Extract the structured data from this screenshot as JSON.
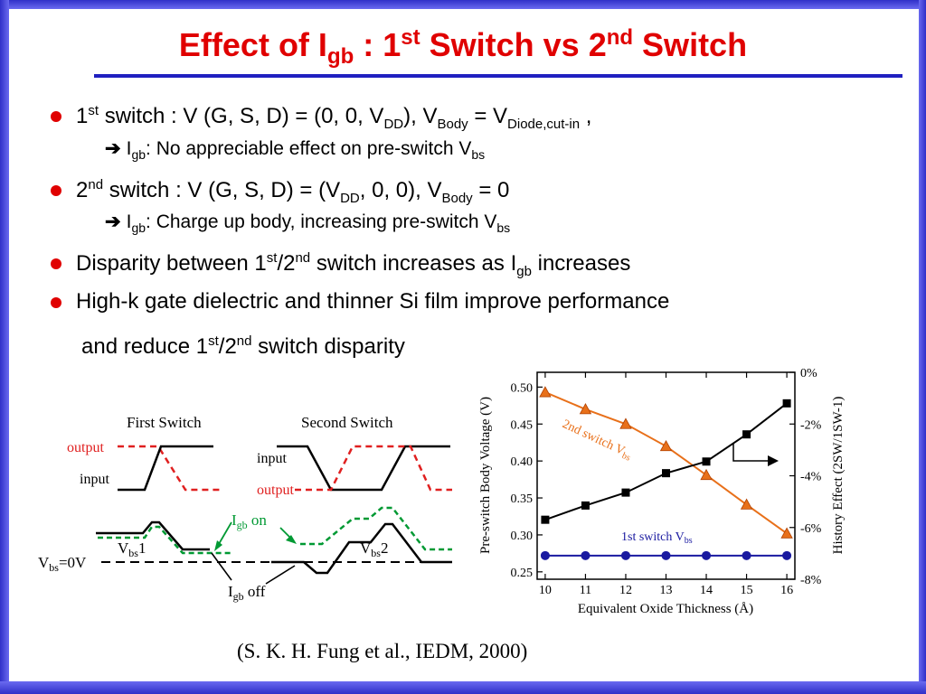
{
  "title": {
    "pre": "Effect  of  I",
    "sub": "gb",
    "mid1": " : 1",
    "sup1": "st",
    "mid2": "  Switch vs  2",
    "sup2": "nd",
    "post": " Switch"
  },
  "bullets": [
    {
      "line": {
        "a": "1",
        "a_sup": "st",
        "b": " switch : V (G, S, D) = (0, 0, V",
        "b_sub": "DD",
        "c": "),  V",
        "c_sub": "Body",
        "d": " = V",
        "d_sub": "Diode,cut-in",
        "e": " ,"
      },
      "sub": {
        "a": "I",
        "a_sub": "gb",
        "b": ": No appreciable effect on pre-switch V",
        "b_sub": "bs"
      }
    },
    {
      "line": {
        "a": "2",
        "a_sup": "nd",
        "b": " switch : V (G, S, D) = (V",
        "b_sub": "DD",
        "c": ", 0, 0),  V",
        "c_sub": "Body",
        "d": " = 0"
      },
      "sub": {
        "a": "I",
        "a_sub": "gb",
        "b": ": Charge up body,  increasing pre-switch V",
        "b_sub": "bs"
      }
    },
    {
      "line": {
        "a": "Disparity between 1",
        "a_sup": "st",
        "b": "/2",
        "b_sup": "nd",
        "c": " switch increases as I",
        "c_sub": "gb",
        "d": " increases"
      }
    },
    {
      "line": {
        "a": "High-k gate dielectric and thinner Si film improve performance"
      },
      "cont": {
        "a": "and reduce 1",
        "a_sup": "st",
        "b": "/2",
        "b_sup": "nd",
        "c": " switch disparity"
      }
    }
  ],
  "diagram": {
    "first_switch": "First Switch",
    "second_switch": "Second Switch",
    "output": "output",
    "input": "input",
    "output2": "output",
    "input2": "input",
    "igb_on": {
      "I": "I",
      "sub": "gb",
      "post": " on"
    },
    "igb_off": {
      "I": "I",
      "sub": "gb",
      "post": " off"
    },
    "vbs1": {
      "V": "V",
      "sub": "bs",
      "post": "1"
    },
    "vbs2": {
      "V": "V",
      "sub": "bs",
      "post": "2"
    },
    "vbs0": {
      "V": "V",
      "sub": "bs",
      "post": "=0V"
    },
    "colors": {
      "output": "#e02020",
      "input": "#000000",
      "igb_on": "#009933"
    }
  },
  "chart_data": {
    "type": "line",
    "x": [
      10,
      11,
      12,
      13,
      14,
      15,
      16
    ],
    "xlabel": "Equivalent Oxide Thickness (Å)",
    "xticks": [
      "10",
      "11",
      "12",
      "13",
      "14",
      "15",
      "16"
    ],
    "xlim": [
      9.8,
      16.2
    ],
    "ylabel": "Pre-switch Body Voltage (V)",
    "ylim": [
      0.24,
      0.52
    ],
    "yticks": [
      "0.25",
      "0.30",
      "0.35",
      "0.40",
      "0.45",
      "0.50"
    ],
    "y2label": "History Effect (2SW/1SW-1)",
    "y2lim": [
      -8,
      0
    ],
    "y2ticks": [
      "0%",
      "-2%",
      "-4%",
      "-6%",
      "-8%"
    ],
    "series": [
      {
        "name": "2nd switch Vbs",
        "label_main": "2nd switch V",
        "label_sub": "bs",
        "axis": "left",
        "marker": "triangle",
        "color": "#e8701a",
        "values": [
          0.493,
          0.47,
          0.45,
          0.42,
          0.381,
          0.341,
          0.302
        ]
      },
      {
        "name": "1st switch Vbs",
        "label_main": "1st switch V",
        "label_sub": "bs",
        "axis": "left",
        "marker": "circle",
        "color": "#1a1aa0",
        "values": [
          0.272,
          0.272,
          0.272,
          0.272,
          0.272,
          0.272,
          0.272
        ]
      },
      {
        "name": "",
        "axis": "right",
        "marker": "square",
        "color": "#000000",
        "values": [
          -5.7,
          -5.15,
          -4.65,
          -3.9,
          -3.45,
          -2.4,
          -1.2
        ]
      }
    ],
    "grid": false
  },
  "citation": "(S. K. H. Fung et al., IEDM, 2000)"
}
